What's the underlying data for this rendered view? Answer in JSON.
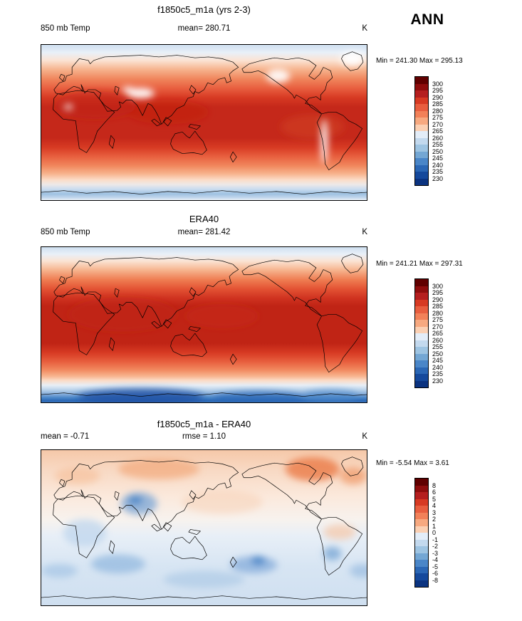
{
  "season": "ANN",
  "panels": [
    {
      "title": "f1850c5_m1a (yrs 2-3)",
      "header": {
        "left": "850 mb Temp",
        "center": "mean= 280.71",
        "right": "K"
      },
      "minmax": "Min = 241.30 Max = 295.13",
      "colorbar": {
        "labels": [
          "300",
          "295",
          "290",
          "285",
          "280",
          "275",
          "270",
          "265",
          "260",
          "255",
          "250",
          "245",
          "240",
          "235",
          "230"
        ],
        "colors": [
          "#600000",
          "#8e0d0d",
          "#b51f1f",
          "#d73a23",
          "#e85e3f",
          "#f28159",
          "#f7a980",
          "#fbd0b3",
          "#e3edf8",
          "#c3d9ee",
          "#9ec4e2",
          "#74a7d4",
          "#4a86c8",
          "#2b67b5",
          "#15499c",
          "#0b3380"
        ]
      }
    },
    {
      "title": "ERA40",
      "header": {
        "left": "850 mb Temp",
        "center": "mean= 281.42",
        "right": "K"
      },
      "minmax": "Min = 241.21 Max = 297.31",
      "colorbar": {
        "labels": [
          "300",
          "295",
          "290",
          "285",
          "280",
          "275",
          "270",
          "265",
          "260",
          "255",
          "250",
          "245",
          "240",
          "235",
          "230"
        ],
        "colors": [
          "#600000",
          "#8e0d0d",
          "#b51f1f",
          "#d73a23",
          "#e85e3f",
          "#f28159",
          "#f7a980",
          "#fbd0b3",
          "#e3edf8",
          "#c3d9ee",
          "#9ec4e2",
          "#74a7d4",
          "#4a86c8",
          "#2b67b5",
          "#15499c",
          "#0b3380"
        ]
      }
    },
    {
      "title": "f1850c5_m1a - ERA40",
      "header": {
        "left": "mean = -0.71",
        "center": "rmse =  1.10",
        "right": "K"
      },
      "minmax": "Min =  -5.54 Max =   3.61",
      "colorbar": {
        "labels": [
          "8",
          "6",
          "5",
          "4",
          "3",
          "2",
          "1",
          "0",
          "-1",
          "-2",
          "-3",
          "-4",
          "-5",
          "-6",
          "-8"
        ],
        "colors": [
          "#600000",
          "#8e0d0d",
          "#b51f1f",
          "#d73a23",
          "#e85e3f",
          "#f28159",
          "#f7a980",
          "#fbd0b3",
          "#e3edf8",
          "#c3d9ee",
          "#9ec4e2",
          "#74a7d4",
          "#4a86c8",
          "#2b67b5",
          "#15499c",
          "#0b3380"
        ]
      }
    }
  ],
  "chart_data": [
    {
      "type": "heatmap",
      "title": "f1850c5_m1a (yrs 2-3)",
      "variable": "850 mb Temp",
      "units": "K",
      "season": "ANN",
      "mean": 280.71,
      "min": 241.3,
      "max": 295.13,
      "colorbar_levels": [
        230,
        235,
        240,
        245,
        250,
        255,
        260,
        265,
        270,
        275,
        280,
        285,
        290,
        295,
        300
      ],
      "projection": "global lat-lon, warm tropics (deep red ~290-295 K), cool poles (blues ~230-250 K)"
    },
    {
      "type": "heatmap",
      "title": "ERA40",
      "variable": "850 mb Temp",
      "units": "K",
      "season": "ANN",
      "mean": 281.42,
      "min": 241.21,
      "max": 297.31,
      "colorbar_levels": [
        230,
        235,
        240,
        245,
        250,
        255,
        260,
        265,
        270,
        275,
        280,
        285,
        290,
        295,
        300
      ],
      "projection": "global lat-lon, warm tropics, strong blue Antarctic band at bottom"
    },
    {
      "type": "heatmap",
      "title": "f1850c5_m1a - ERA40",
      "variable": "850 mb Temp difference",
      "units": "K",
      "season": "ANN",
      "mean": -0.71,
      "rmse": 1.1,
      "min": -5.54,
      "max": 3.61,
      "colorbar_levels": [
        -8,
        -6,
        -5,
        -4,
        -3,
        -2,
        -1,
        0,
        1,
        2,
        3,
        4,
        5,
        6,
        8
      ],
      "projection": "global lat-lon, pale warm bias in northern high latitudes, pale cold bias in southern hemisphere"
    }
  ]
}
